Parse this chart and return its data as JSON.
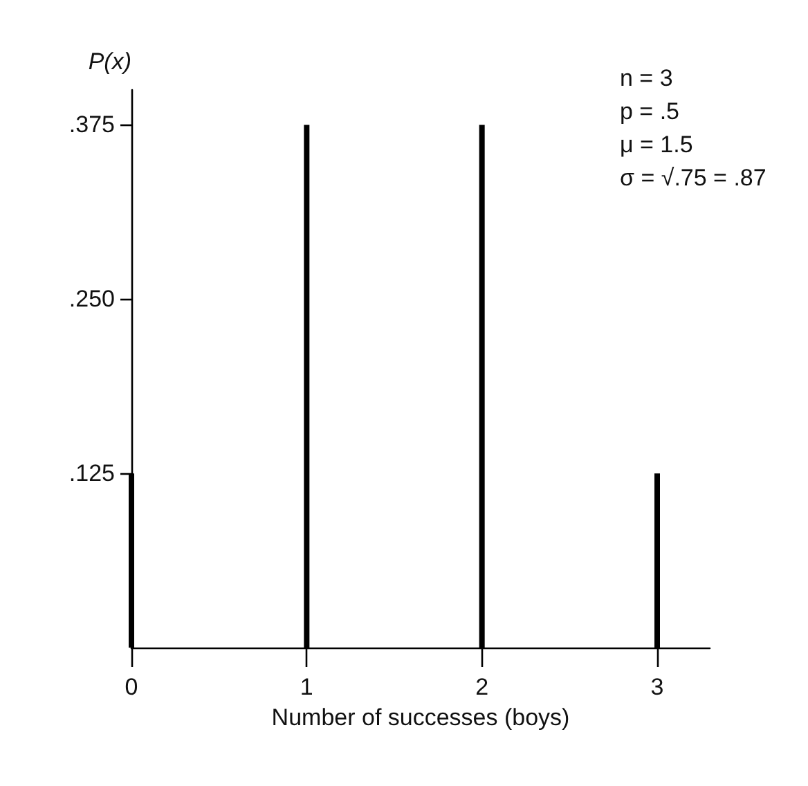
{
  "chart_data": {
    "type": "bar",
    "xlabel": "Number of successes (boys)",
    "ylabel": "P(x)",
    "x": [
      0,
      1,
      2,
      3
    ],
    "values": [
      0.125,
      0.375,
      0.375,
      0.125
    ],
    "color": "#000000",
    "xlim": [
      0,
      3.3
    ],
    "xticks": [
      0,
      1,
      2,
      3
    ],
    "ylim": [
      0,
      0.4
    ],
    "yticks": [
      {
        "value": 0.125,
        "label": ".125"
      },
      {
        "value": 0.25,
        "label": ".250"
      },
      {
        "value": 0.375,
        "label": ".375"
      }
    ],
    "grid": false,
    "annotations": [
      "n = 3",
      "p = .5",
      "μ = 1.5",
      "σ = √.75 = .87"
    ]
  }
}
